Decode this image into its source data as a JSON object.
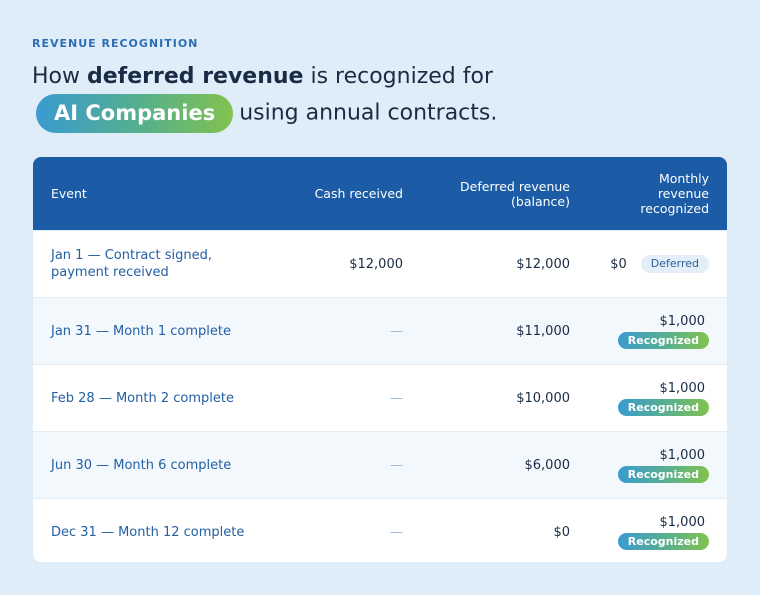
{
  "eyebrow": "REVENUE RECOGNITION",
  "headline": {
    "prefix": "How ",
    "emphasis": "deferred revenue",
    "middle": " is recognized for",
    "pill": "AI Companies",
    "suffix": "using annual contracts."
  },
  "table": {
    "columns": {
      "event": "Event",
      "cash": "Cash received",
      "deferred": "Deferred revenue (balance)",
      "monthly": "Monthly revenue recognized"
    },
    "rows": [
      {
        "event": "Jan 1 — Contract signed, payment received",
        "cash": "$12,000",
        "deferred": "$12,000",
        "monthly": "$0",
        "status": "Deferred"
      },
      {
        "event": "Jan 31 — Month 1 complete",
        "cash": "—",
        "deferred": "$11,000",
        "monthly": "$1,000",
        "status": "Recognized"
      },
      {
        "event": "Feb 28 — Month 2 complete",
        "cash": "—",
        "deferred": "$10,000",
        "monthly": "$1,000",
        "status": "Recognized"
      },
      {
        "event": "Jun 30 — Month 6 complete",
        "cash": "—",
        "deferred": "$6,000",
        "monthly": "$1,000",
        "status": "Recognized"
      },
      {
        "event": "Dec 31 — Month 12 complete",
        "cash": "—",
        "deferred": "$0",
        "monthly": "$1,000",
        "status": "Recognized"
      }
    ]
  },
  "colors": {
    "page_background": "#deedf8",
    "header_background": "#1c5ba6",
    "accent_blue": "#3a9bd0",
    "accent_green": "#82c24f"
  }
}
